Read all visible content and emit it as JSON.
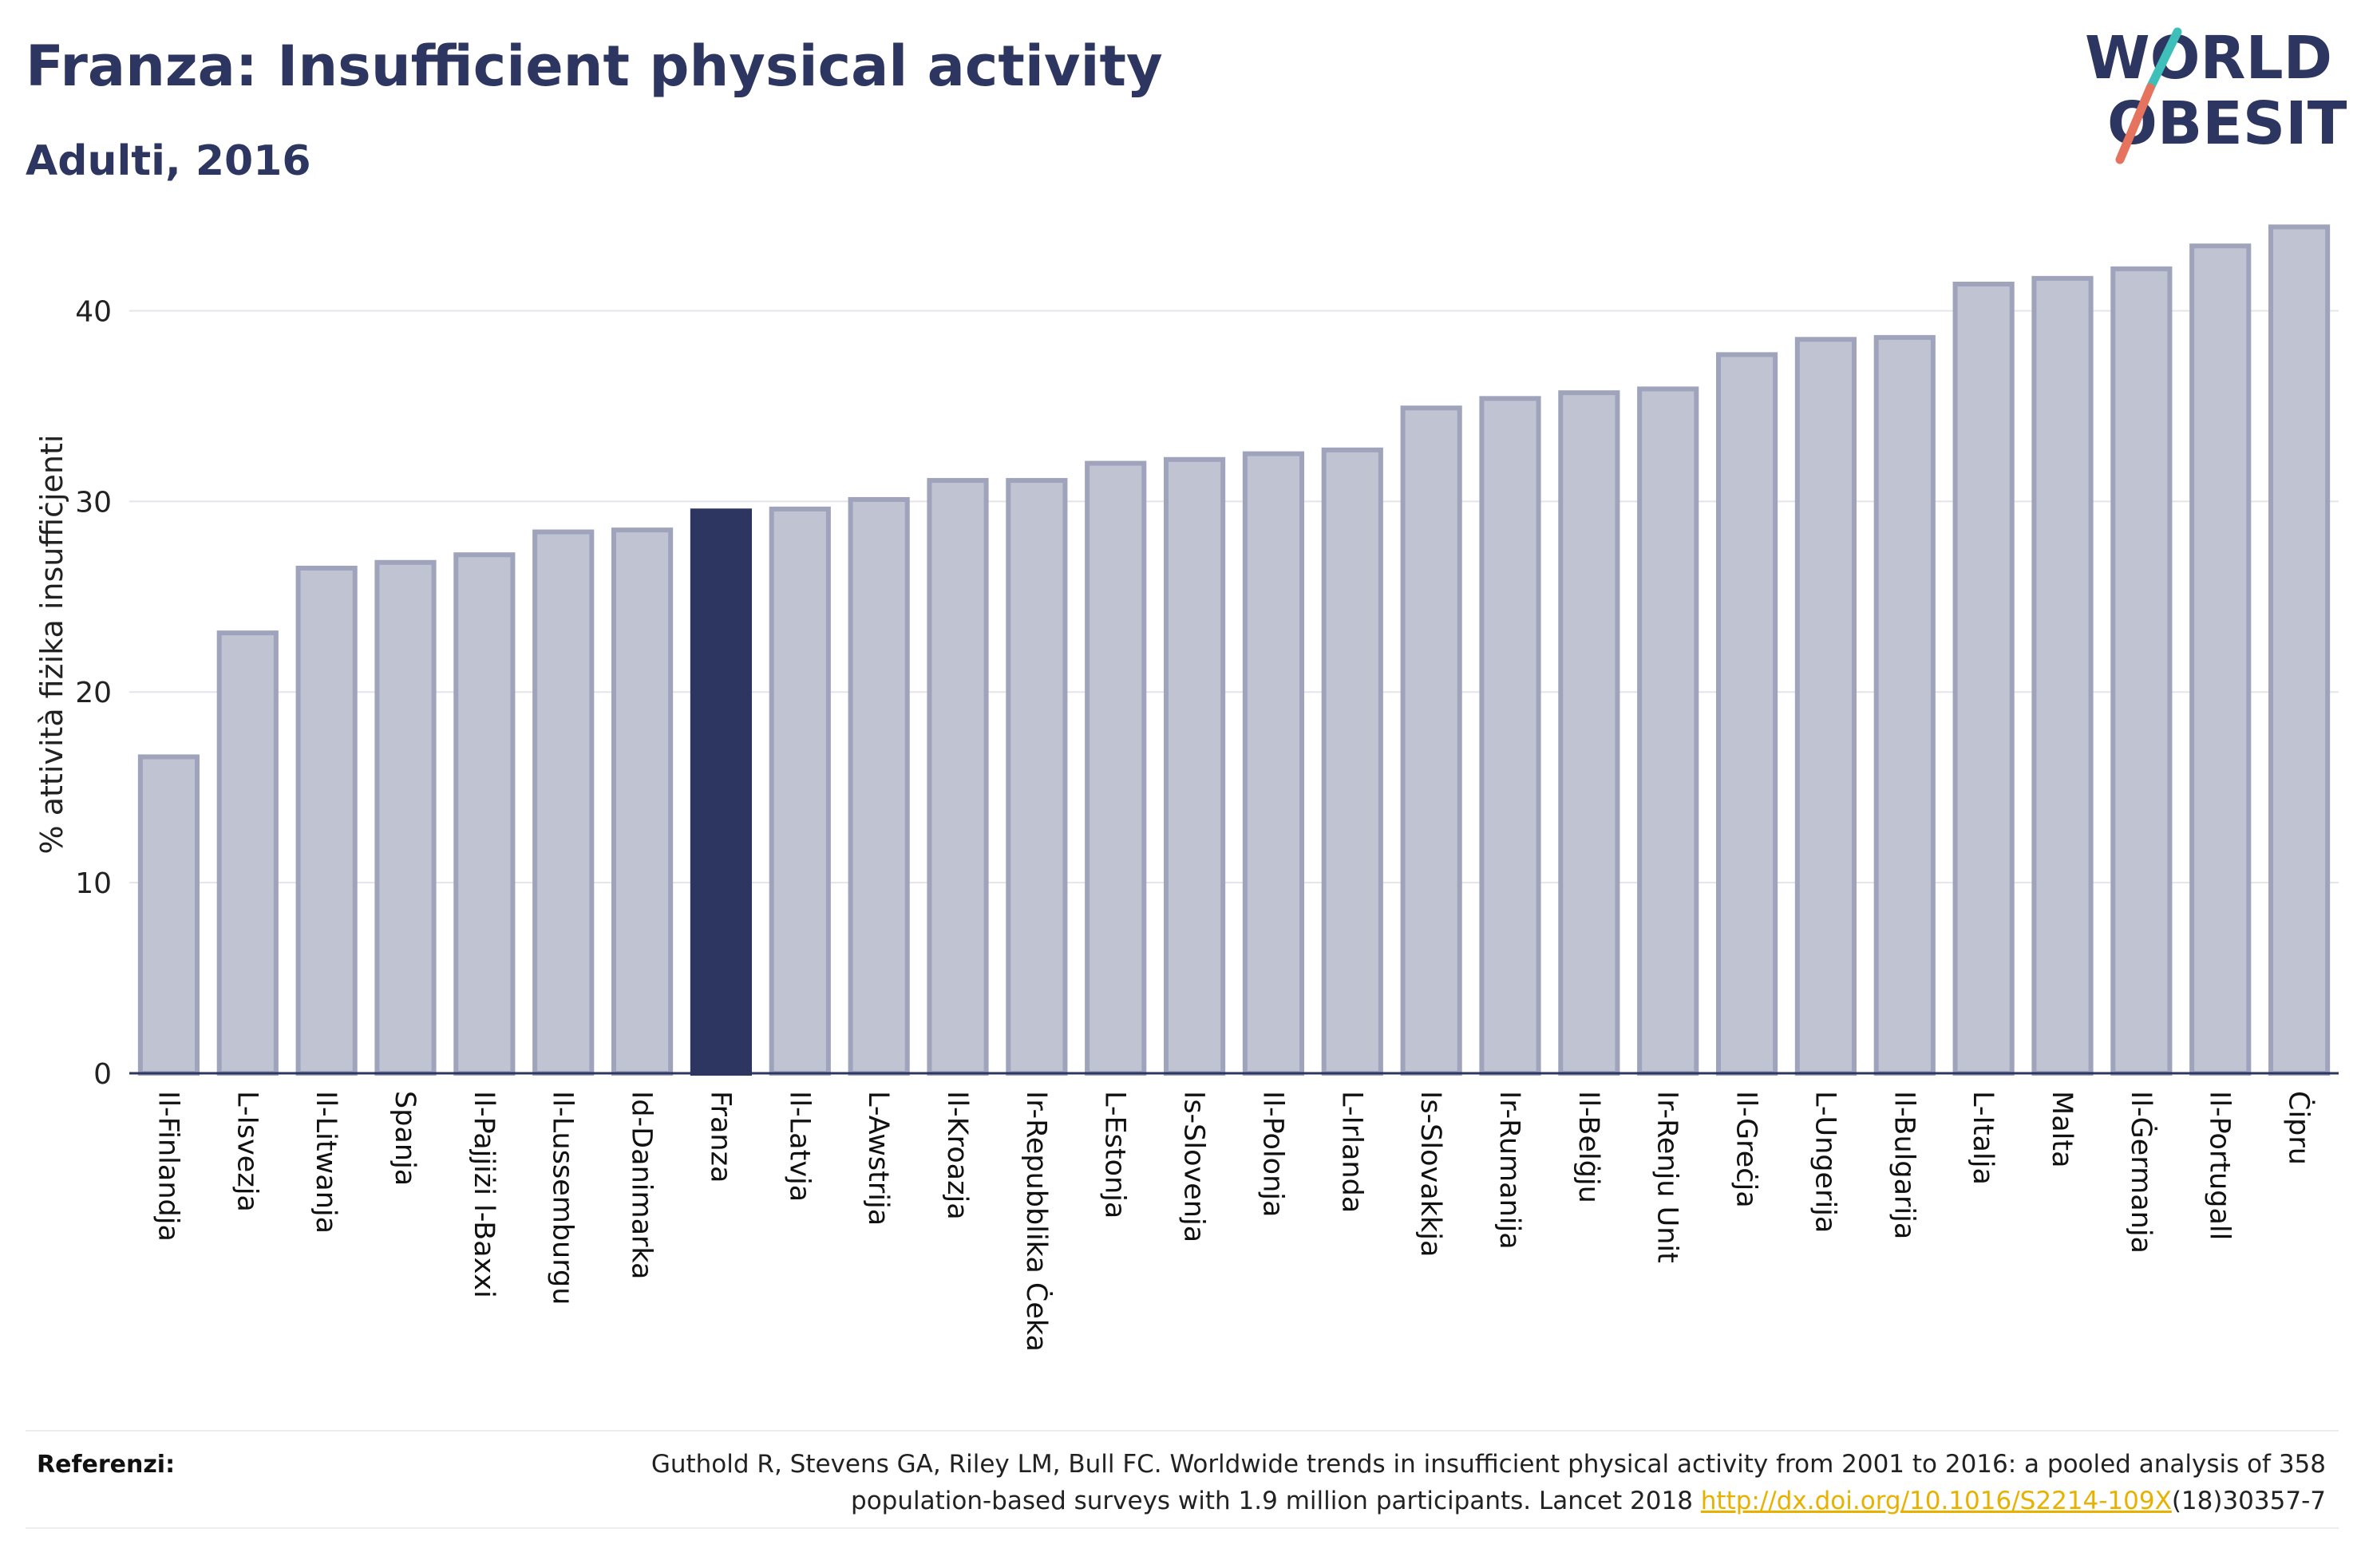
{
  "header": {
    "title": "Franza: Insufficient physical activity",
    "subtitle": "Adulti, 2016"
  },
  "logo": {
    "line1": "WORLD",
    "line2": "OBESITY",
    "colors": {
      "text": "#2d3561",
      "slash_top": "#3fbfb9",
      "slash_bottom": "#e5735d"
    }
  },
  "chart_data": {
    "type": "bar",
    "ylabel": "% attività fiżika insuffiċjenti",
    "xlabel": "",
    "ylim": [
      0,
      45
    ],
    "yticks": [
      0,
      10,
      20,
      30,
      40
    ],
    "grid": true,
    "highlight": "Franza",
    "colors": {
      "bar": "#c0c3d1",
      "bar_edge": "#9fa3bb",
      "highlight": "#2d3561"
    },
    "categories": [
      "Il-Finlandja",
      "L-Isvezja",
      "Il-Litwanja",
      "Spanja",
      "Il-Pajjiżi l-Baxxi",
      "Il-Lussemburgu",
      "Id-Danimarka",
      "Franza",
      "Il-Latvja",
      "L-Awstrija",
      "Il-Kroazja",
      "Ir-Repubblika Ċeka",
      "L-Estonja",
      "Is-Slovenja",
      "Il-Polonja",
      "L-Irlanda",
      "Is-Slovakkja",
      "Ir-Rumanija",
      "Il-Belġju",
      "Ir-Renju Unit",
      "Il-Greċja",
      "L-Ungerija",
      "Il-Bulgarija",
      "L-Italja",
      "Malta",
      "Il-Ġermanja",
      "Il-Portugall",
      "Ċipru"
    ],
    "values": [
      16.6,
      23.1,
      26.5,
      26.8,
      27.2,
      28.4,
      28.5,
      29.5,
      29.6,
      30.1,
      31.1,
      31.1,
      32.0,
      32.2,
      32.5,
      32.7,
      34.9,
      35.4,
      35.7,
      35.9,
      37.7,
      38.5,
      38.6,
      41.4,
      41.7,
      42.2,
      43.4,
      44.4
    ]
  },
  "references": {
    "label": "Referenzi:",
    "text_line1": "Guthold R, Stevens GA, Riley LM, Bull FC. Worldwide trends in insufficient physical activity from 2001 to 2016: a pooled analysis of 358",
    "text_line2_prefix": "population-based surveys with 1.9 million participants. Lancet 2018 ",
    "link_text": "http://dx.doi.org/10.1016/S2214-109X",
    "text_suffix": "(18)30357-7"
  }
}
